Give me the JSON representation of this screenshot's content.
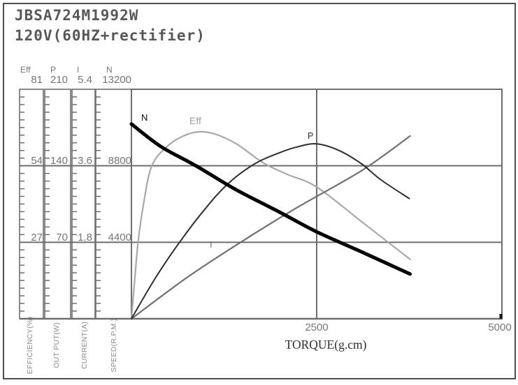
{
  "title": {
    "line1": "JBSA724M1992W",
    "line2": "120V(60HZ+rectifier)"
  },
  "scales": {
    "columns": [
      {
        "header": "Eff",
        "values": [
          "81",
          "54",
          "27"
        ],
        "axis_label": "EFFICIENCY(%)"
      },
      {
        "header": "P",
        "values": [
          "210",
          "140",
          "70"
        ],
        "axis_label": "OUT PUT(W)"
      },
      {
        "header": "I",
        "values": [
          "5.4",
          "3.6",
          "1.8"
        ],
        "axis_label": "CURRENT(A)"
      },
      {
        "header": "N",
        "values": [
          "13200",
          "8800",
          "4400"
        ],
        "axis_label": "SPEED(R.P.M.)"
      }
    ]
  },
  "x_axis": {
    "tick1": "2500",
    "tick2": "5000",
    "label": "TORQUE(g.cm)"
  },
  "curve_labels": {
    "n": "N",
    "eff": "Eff",
    "p": "P",
    "i": "I"
  },
  "colors": {
    "grid": "#6e6e6e",
    "n_curve": "#000000",
    "eff_curve": "#a8a8a8",
    "p_curve": "#2d2d2d",
    "i_curve": "#6f6f6f"
  },
  "chart_data": {
    "type": "line",
    "title": "JBSA724M1992W 120V(60HZ+rectifier)",
    "xlabel": "TORQUE(g.cm)",
    "x_range": [
      0,
      5000
    ],
    "x_ticks": [
      2500,
      5000
    ],
    "grid": "on",
    "y_axes": [
      {
        "name": "Eff",
        "label": "EFFICIENCY(%)",
        "max": 81,
        "ticks": [
          27,
          54,
          81
        ]
      },
      {
        "name": "P",
        "label": "OUT PUT(W)",
        "max": 210,
        "ticks": [
          70,
          140,
          210
        ]
      },
      {
        "name": "I",
        "label": "CURRENT(A)",
        "max": 5.4,
        "ticks": [
          1.8,
          3.6,
          5.4
        ]
      },
      {
        "name": "N",
        "label": "SPEED(R.P.M.)",
        "max": 13200,
        "ticks": [
          4400,
          8800,
          13200
        ]
      }
    ],
    "series": [
      {
        "name": "Eff",
        "axis": "Eff",
        "axis_max": 81,
        "color": "#a8a8a8",
        "width": 2.2,
        "points": [
          [
            0,
            0
          ],
          [
            45,
            14
          ],
          [
            90,
            27
          ],
          [
            160,
            40
          ],
          [
            275,
            54
          ],
          [
            490,
            61
          ],
          [
            700,
            64.5
          ],
          [
            915,
            66
          ],
          [
            1150,
            65
          ],
          [
            1430,
            61.5
          ],
          [
            1780,
            55
          ],
          [
            2100,
            51
          ],
          [
            2500,
            46.5
          ],
          [
            3120,
            34
          ],
          [
            3760,
            21
          ]
        ]
      },
      {
        "name": "I",
        "axis": "I",
        "axis_max": 5.4,
        "color": "#6f6f6f",
        "width": 2.2,
        "points": [
          [
            0,
            0
          ],
          [
            750,
            0.97
          ],
          [
            1510,
            1.84
          ],
          [
            2220,
            2.6
          ],
          [
            3120,
            3.5
          ],
          [
            3760,
            4.3
          ]
        ]
      },
      {
        "name": "P",
        "axis": "P",
        "axis_max": 210,
        "color": "#2d2d2d",
        "width": 2,
        "points": [
          [
            0,
            0
          ],
          [
            330,
            38
          ],
          [
            660,
            71
          ],
          [
            1000,
            101
          ],
          [
            1310,
            124
          ],
          [
            1670,
            142
          ],
          [
            2000,
            152
          ],
          [
            2250,
            157.5
          ],
          [
            2500,
            160
          ],
          [
            2800,
            154
          ],
          [
            3100,
            142
          ],
          [
            3370,
            127
          ],
          [
            3750,
            110
          ]
        ]
      },
      {
        "name": "N",
        "axis": "N",
        "axis_max": 13200,
        "color": "#000000",
        "width": 5,
        "points": [
          [
            0,
            11200
          ],
          [
            400,
            9900
          ],
          [
            870,
            8800
          ],
          [
            1400,
            7450
          ],
          [
            1970,
            6200
          ],
          [
            2500,
            5000
          ],
          [
            3130,
            3800
          ],
          [
            3760,
            2570
          ]
        ]
      }
    ]
  }
}
